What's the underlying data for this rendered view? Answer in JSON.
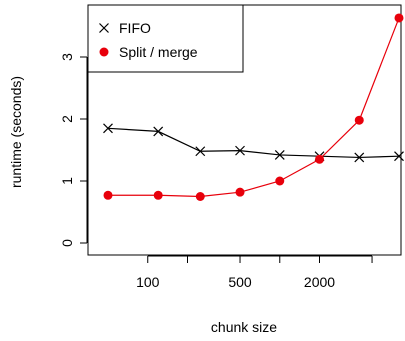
{
  "chart_data": {
    "type": "line",
    "xlabel": "chunk size",
    "ylabel": "runtime (seconds)",
    "x_scale": "log",
    "x": [
      50,
      120,
      250,
      500,
      1000,
      2000,
      4000,
      8000
    ],
    "xticks": [
      {
        "value": 100,
        "label": "100"
      },
      {
        "value": 200,
        "label": ""
      },
      {
        "value": 500,
        "label": "500"
      },
      {
        "value": 1000,
        "label": ""
      },
      {
        "value": 2000,
        "label": "2000"
      },
      {
        "value": 5000,
        "label": ""
      }
    ],
    "yticks": [
      {
        "value": 0,
        "label": "0"
      },
      {
        "value": 1,
        "label": "1"
      },
      {
        "value": 2,
        "label": "2"
      },
      {
        "value": 3,
        "label": "3"
      }
    ],
    "ylim": [
      0,
      3.65
    ],
    "legend_position": "top-left",
    "grid": false,
    "series": [
      {
        "name": "FIFO",
        "marker": "cross",
        "color": "#000000",
        "values": [
          1.85,
          1.8,
          1.48,
          1.49,
          1.42,
          1.4,
          1.38,
          1.4
        ]
      },
      {
        "name": "Split / merge",
        "marker": "filled-circle",
        "color": "#e8000b",
        "values": [
          0.77,
          0.77,
          0.75,
          0.82,
          1.0,
          1.35,
          1.98,
          3.63
        ]
      }
    ]
  }
}
